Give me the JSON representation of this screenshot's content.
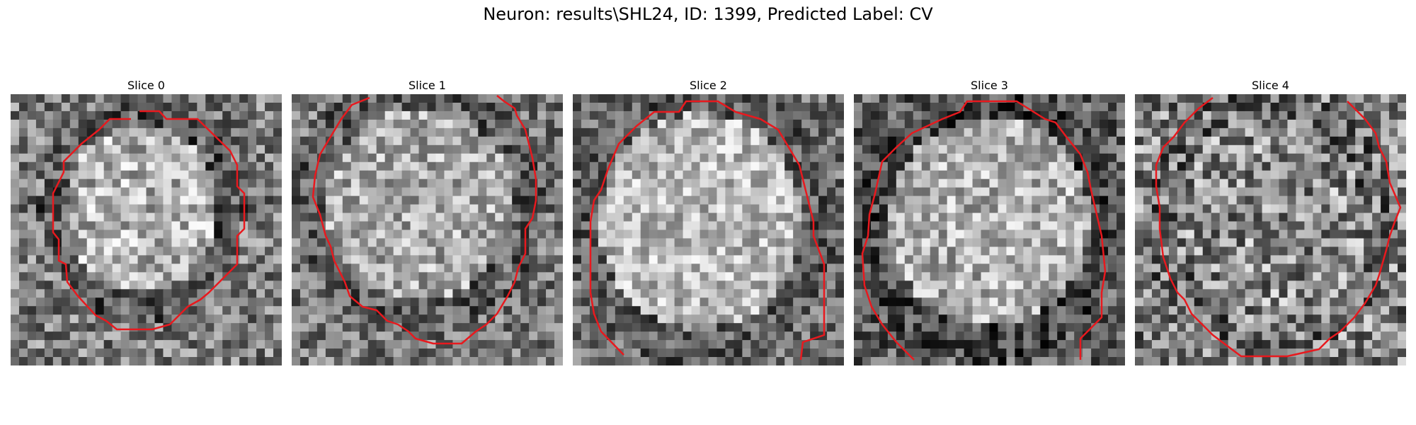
{
  "figure": {
    "title": "Neuron: results\\SHL24, ID: 1399, Predicted Label: CV"
  },
  "panels": [
    {
      "title": "Slice 0"
    },
    {
      "title": "Slice 1"
    },
    {
      "title": "Slice 2"
    },
    {
      "title": "Slice 3"
    },
    {
      "title": "Slice 4"
    }
  ],
  "colors": {
    "contour": "#e8191e",
    "background": "#ffffff"
  }
}
